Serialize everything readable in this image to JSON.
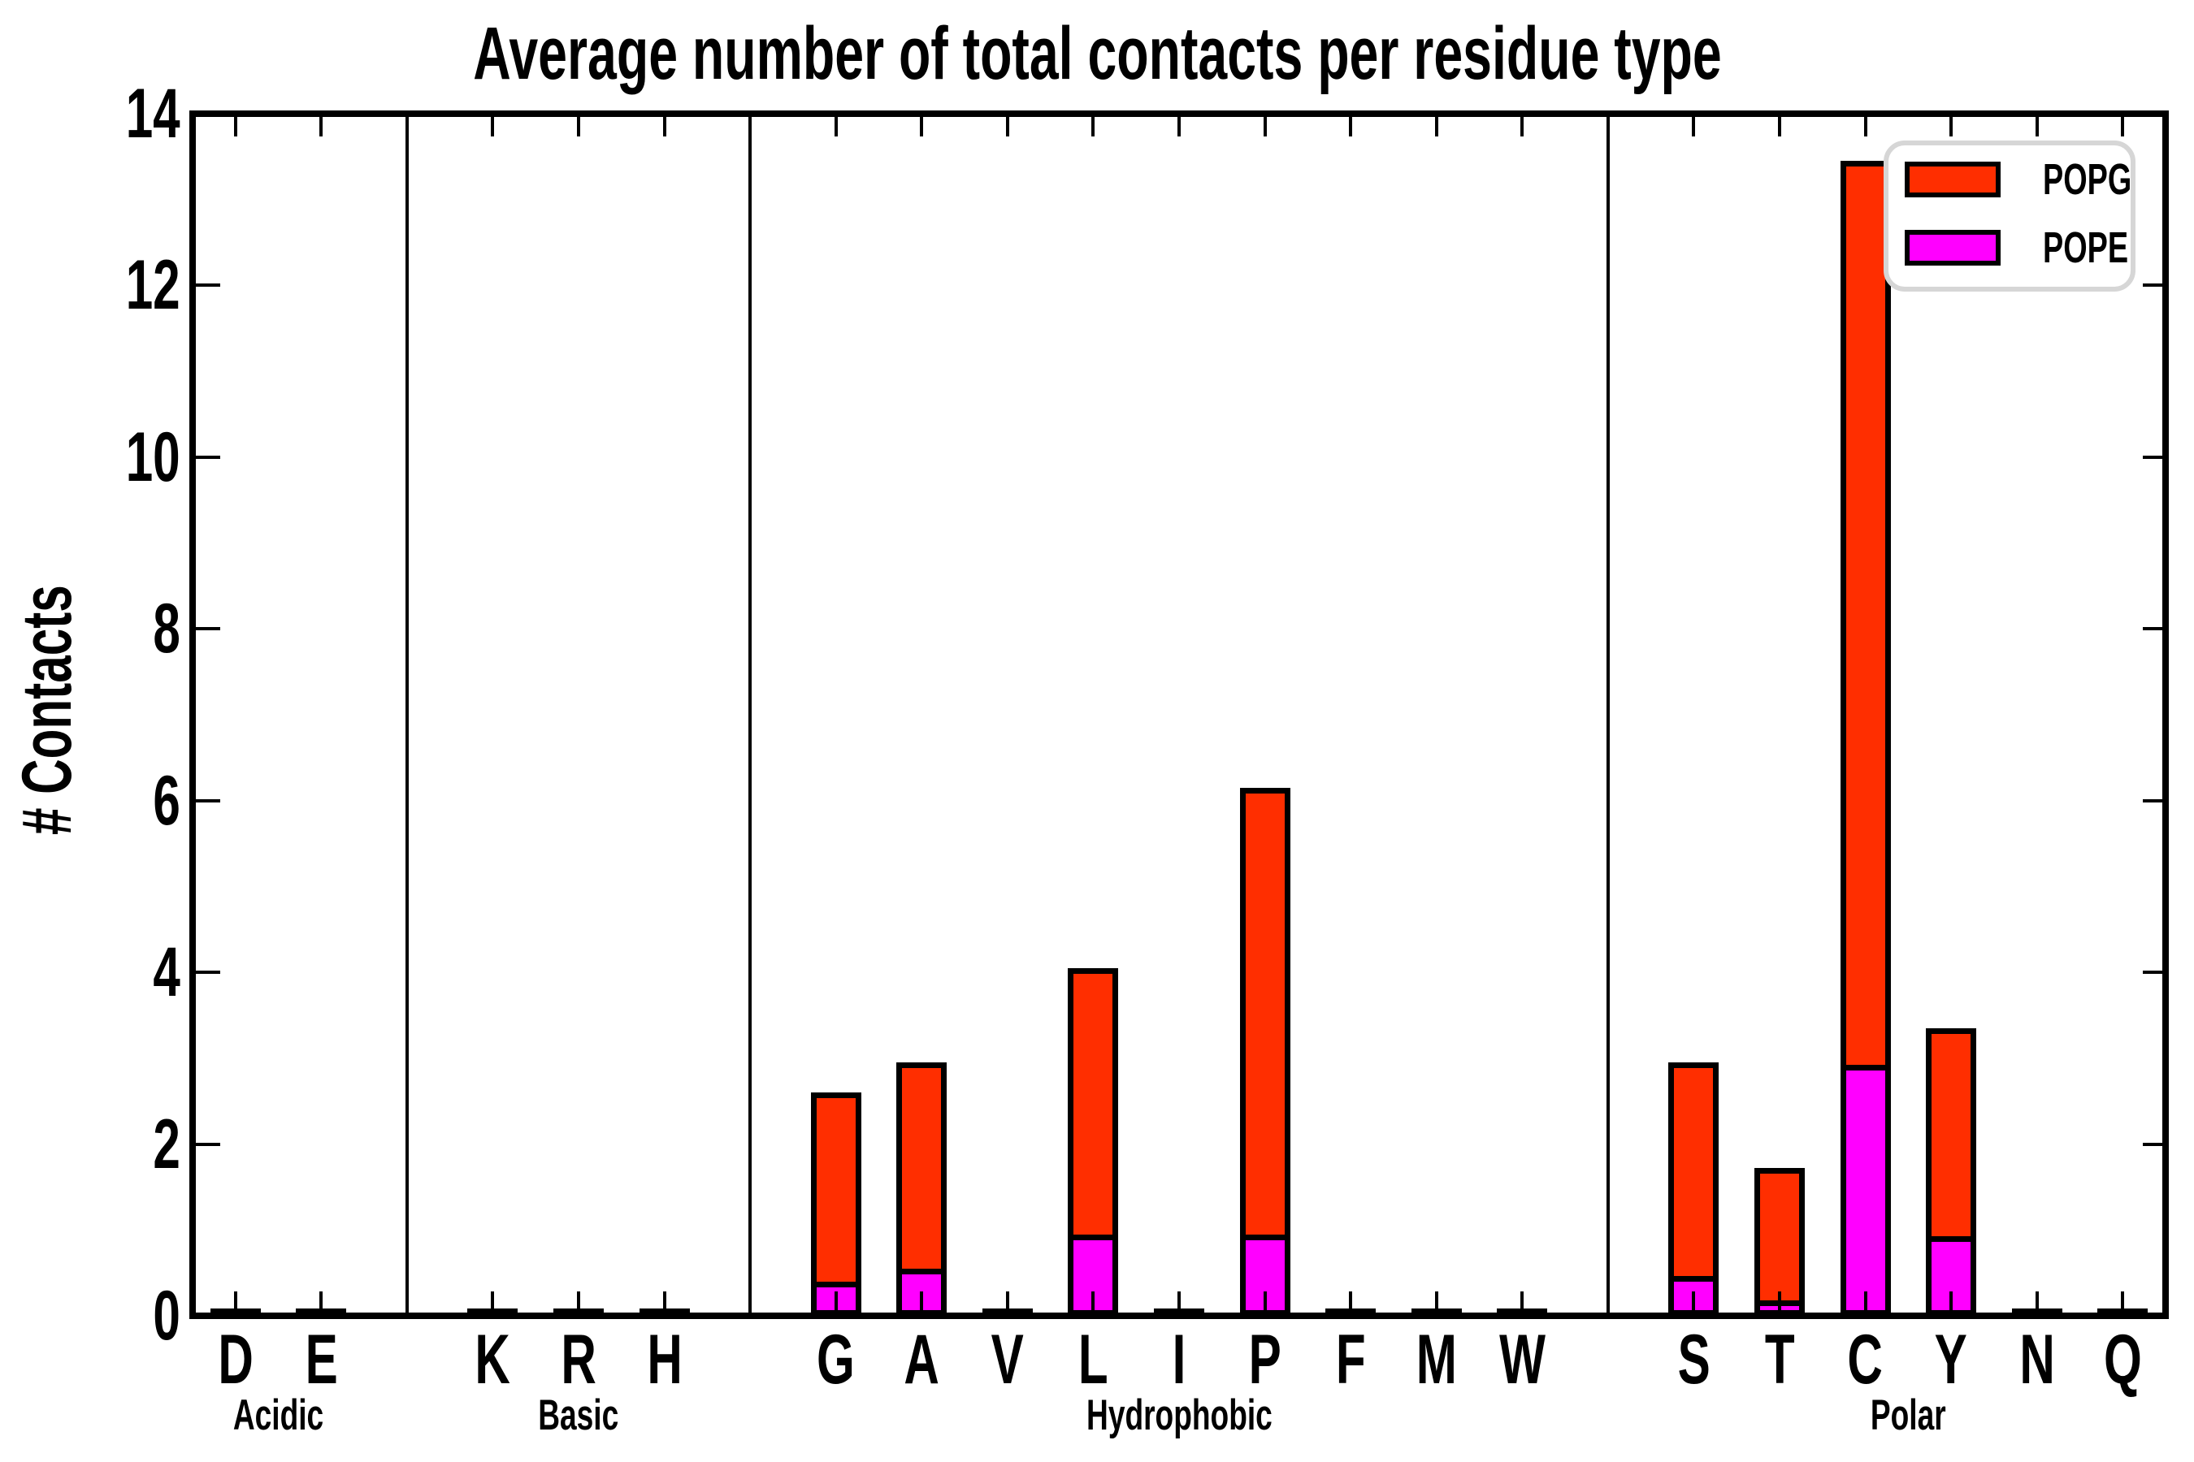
{
  "title": "Average number of total contacts per residue type",
  "y_axis": {
    "label": "# Contacts",
    "ticks": [
      0,
      2,
      4,
      6,
      8,
      10,
      12,
      14
    ],
    "limits": [
      0,
      14
    ]
  },
  "legend": {
    "items": [
      {
        "label": "POPG",
        "color": "#FF2E00"
      },
      {
        "label": "POPE",
        "color": "#FF00FF"
      }
    ]
  },
  "chart_data": {
    "type": "bar",
    "stacked": true,
    "title": "Average number of total contacts per residue type",
    "xlabel": "",
    "ylabel": "# Contacts",
    "ylim": [
      0,
      14
    ],
    "yticks": [
      0,
      2,
      4,
      6,
      8,
      10,
      12,
      14
    ],
    "grid": false,
    "legend_position": "upper right",
    "groups": [
      {
        "label": "Acidic",
        "residues": [
          "D",
          "E"
        ]
      },
      {
        "label": "Basic",
        "residues": [
          "K",
          "R",
          "H"
        ]
      },
      {
        "label": "Hydrophobic",
        "residues": [
          "G",
          "A",
          "V",
          "L",
          "I",
          "P",
          "F",
          "M",
          "W"
        ]
      },
      {
        "label": "Polar",
        "residues": [
          "S",
          "T",
          "C",
          "Y",
          "N",
          "Q"
        ]
      }
    ],
    "categories": [
      "D",
      "E",
      "K",
      "R",
      "H",
      "G",
      "A",
      "V",
      "L",
      "I",
      "P",
      "F",
      "M",
      "W",
      "S",
      "T",
      "C",
      "Y",
      "N",
      "Q"
    ],
    "series": [
      {
        "name": "POPG",
        "color": "#FF2E00",
        "values": [
          0.02,
          0.02,
          0.02,
          0.02,
          0.02,
          2.2,
          2.4,
          0.02,
          3.1,
          0.02,
          5.2,
          0.02,
          0.02,
          0.02,
          2.49,
          1.54,
          10.53,
          2.42,
          0.02,
          0.02
        ]
      },
      {
        "name": "POPE",
        "color": "#FF00FF",
        "values": [
          0.01,
          0.01,
          0.01,
          0.01,
          0.01,
          0.4,
          0.55,
          0.01,
          0.95,
          0.01,
          0.95,
          0.01,
          0.01,
          0.01,
          0.46,
          0.18,
          2.92,
          0.93,
          0.01,
          0.01
        ]
      }
    ],
    "totals": [
      0.03,
      0.03,
      0.03,
      0.03,
      0.03,
      2.6,
      2.95,
      0.03,
      4.05,
      0.03,
      6.15,
      0.03,
      0.03,
      0.03,
      2.95,
      1.72,
      13.45,
      3.35,
      0.03,
      0.03
    ]
  }
}
